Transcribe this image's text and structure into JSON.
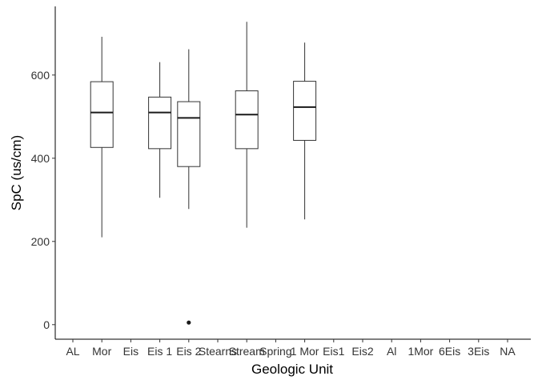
{
  "chart_data": {
    "type": "boxplot",
    "title": "",
    "xlabel": "Geologic Unit",
    "ylabel": "SpC (us/cm)",
    "categories": [
      "AL",
      "Mor",
      "Eis",
      "Eis 1",
      "Eis 2",
      "Stearns",
      "Stream",
      "Spring",
      "1 Mor",
      "Eis1",
      "Eis2",
      "Al",
      "1Mor",
      "6Eis",
      "3Eis",
      "NA"
    ],
    "boxes": [
      {
        "category": "Mor",
        "whisker_low": 210,
        "q1": 426,
        "median": 510,
        "q3": 584,
        "whisker_high": 692,
        "outliers": []
      },
      {
        "category": "Eis 1",
        "whisker_low": 305,
        "q1": 423,
        "median": 510,
        "q3": 547,
        "whisker_high": 631,
        "outliers": []
      },
      {
        "category": "Eis 2",
        "whisker_low": 278,
        "q1": 380,
        "median": 497,
        "q3": 536,
        "whisker_high": 662,
        "outliers": [
          5
        ]
      },
      {
        "category": "Stream",
        "whisker_low": 233,
        "q1": 423,
        "median": 505,
        "q3": 562,
        "whisker_high": 728,
        "outliers": []
      },
      {
        "category": "1 Mor",
        "whisker_low": 253,
        "q1": 443,
        "median": 523,
        "q3": 585,
        "whisker_high": 678,
        "outliers": []
      }
    ],
    "yticks": [
      0,
      200,
      400,
      600
    ],
    "ylim": [
      -35,
      765
    ],
    "grid": false,
    "legend": "none",
    "colors": {
      "box_fill": "#ffffff",
      "line": "#333333",
      "axis": "#000000"
    }
  }
}
